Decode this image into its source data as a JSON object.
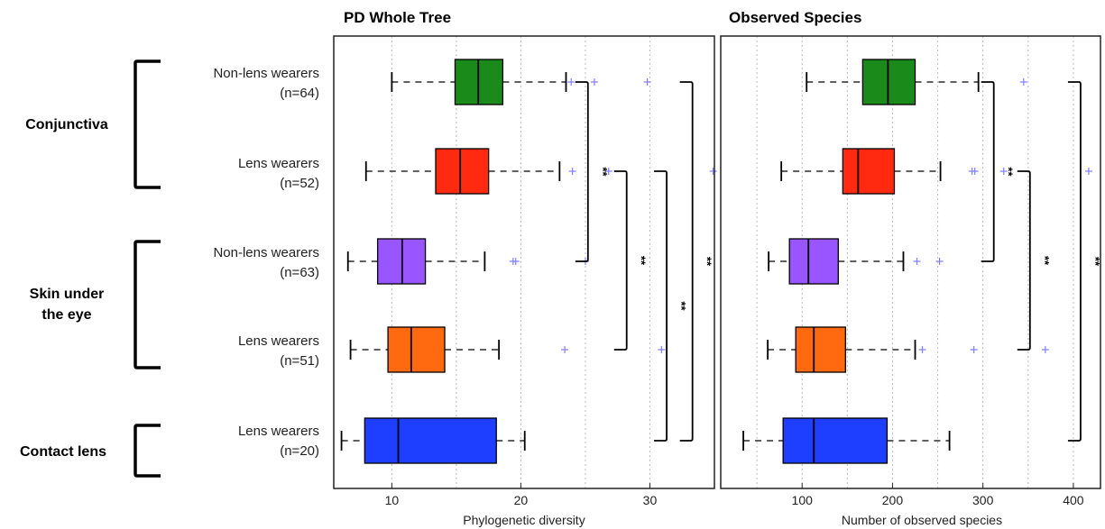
{
  "colors": {
    "green": "#1a8a1a",
    "red": "#ff2a10",
    "purple": "#9955ff",
    "orange": "#ff6a10",
    "blue": "#1e3fff",
    "outlier": "#8080ff"
  },
  "row_labels": [
    {
      "line1": "Non-lens wearers",
      "line2": "(n=64)"
    },
    {
      "line1": "Lens wearers",
      "line2": "(n=52)"
    },
    {
      "line1": "Non-lens wearers",
      "line2": "(n=63)"
    },
    {
      "line1": "Lens wearers",
      "line2": "(n=51)"
    },
    {
      "line1": "Lens wearers",
      "line2": "(n=20)"
    }
  ],
  "groups": [
    {
      "line1": "Conjunctiva",
      "line2": ""
    },
    {
      "line1": "Skin under",
      "line2": "the eye"
    },
    {
      "line1": "Contact lens",
      "line2": ""
    }
  ],
  "significance_label": "**",
  "chart_data": [
    {
      "type": "boxplot",
      "title": "PD Whole Tree",
      "xlabel": "Phylogenetic diversity",
      "xlim": [
        5.5,
        35
      ],
      "xticks": [
        10,
        20,
        30
      ],
      "grid": true,
      "series": [
        {
          "color": "green",
          "whisker_low": 10,
          "q1": 14.9,
          "median": 16.7,
          "q3": 18.6,
          "whisker_high": 23.5,
          "outliers": [
            23.9,
            25.7,
            29.8
          ]
        },
        {
          "color": "red",
          "whisker_low": 8,
          "q1": 13.4,
          "median": 15.3,
          "q3": 17.5,
          "whisker_high": 23,
          "outliers": [
            24,
            26.8,
            34.9
          ]
        },
        {
          "color": "purple",
          "whisker_low": 6.6,
          "q1": 8.9,
          "median": 10.8,
          "q3": 12.6,
          "whisker_high": 17.2,
          "outliers": [
            19.4,
            19.6,
            25
          ]
        },
        {
          "color": "orange",
          "whisker_low": 6.8,
          "q1": 9.7,
          "median": 11.5,
          "q3": 14.1,
          "whisker_high": 18.3,
          "outliers": [
            23.4,
            30.9
          ]
        },
        {
          "color": "blue",
          "whisker_low": 6.1,
          "q1": 7.9,
          "median": 10.5,
          "q3": 18.1,
          "whisker_high": 20.3,
          "outliers": []
        }
      ],
      "brackets": [
        {
          "from": 0,
          "to": 2,
          "x": 25.2
        },
        {
          "from": 1,
          "to": 3,
          "x": 28.2
        },
        {
          "from": 1,
          "to": 4,
          "x": 31.3
        },
        {
          "from": 0,
          "to": 4,
          "x": 33.3
        }
      ]
    },
    {
      "type": "boxplot",
      "title": "Observed Species",
      "xlabel": "Number of observed species",
      "xlim": [
        10,
        430
      ],
      "xticks": [
        100,
        200,
        300,
        400
      ],
      "grid": true,
      "series": [
        {
          "color": "green",
          "whisker_low": 105,
          "q1": 167,
          "median": 195,
          "q3": 225,
          "whisker_high": 295,
          "outliers": [
            345
          ]
        },
        {
          "color": "red",
          "whisker_low": 77,
          "q1": 145,
          "median": 162,
          "q3": 202,
          "whisker_high": 253,
          "outliers": [
            288,
            291,
            323,
            417
          ]
        },
        {
          "color": "purple",
          "whisker_low": 63,
          "q1": 86,
          "median": 107,
          "q3": 140,
          "whisker_high": 212,
          "outliers": [
            227,
            252
          ]
        },
        {
          "color": "orange",
          "whisker_low": 62,
          "q1": 93,
          "median": 113,
          "q3": 148,
          "whisker_high": 225,
          "outliers": [
            233,
            290,
            369
          ]
        },
        {
          "color": "blue",
          "whisker_low": 35,
          "q1": 79,
          "median": 113,
          "q3": 194,
          "whisker_high": 263,
          "outliers": []
        }
      ],
      "brackets": [
        {
          "from": 0,
          "to": 2,
          "x": 312
        },
        {
          "from": 1,
          "to": 3,
          "x": 352
        },
        {
          "from": 0,
          "to": 4,
          "x": 408
        }
      ]
    }
  ]
}
